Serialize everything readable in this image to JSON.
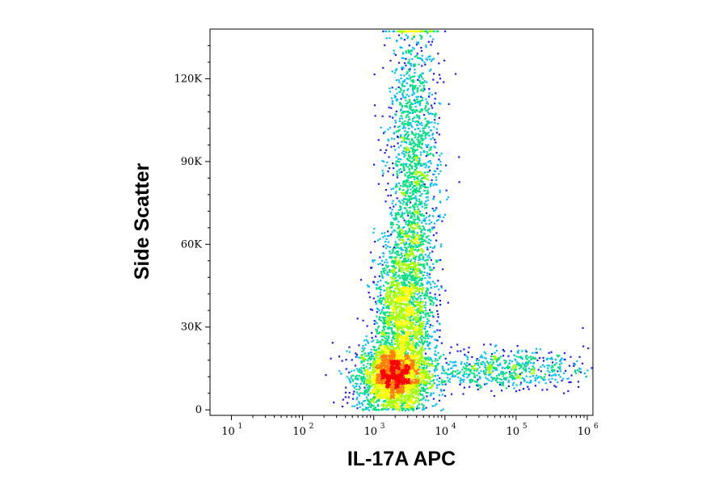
{
  "chart_data": {
    "type": "scatter",
    "xlabel": "IL-17A APC",
    "ylabel": "Side Scatter",
    "x_scale": "log",
    "xlim": [
      5,
      1200000
    ],
    "ylim": [
      -2000,
      138000
    ],
    "x_ticks": [
      {
        "value": 10,
        "base": "10",
        "exp": "1"
      },
      {
        "value": 100,
        "base": "10",
        "exp": "2"
      },
      {
        "value": 1000,
        "base": "10",
        "exp": "3"
      },
      {
        "value": 10000,
        "base": "10",
        "exp": "4"
      },
      {
        "value": 100000,
        "base": "10",
        "exp": "5"
      },
      {
        "value": 1000000,
        "base": "10",
        "exp": "6"
      }
    ],
    "y_ticks": [
      {
        "value": 0,
        "label": "0"
      },
      {
        "value": 30000,
        "label": "30K"
      },
      {
        "value": 60000,
        "label": "60K"
      },
      {
        "value": 90000,
        "label": "90K"
      },
      {
        "value": 120000,
        "label": "120K"
      }
    ],
    "grid": false,
    "legend": "none",
    "density_colormap": [
      "#1a1aff",
      "#00bfff",
      "#00e080",
      "#a0ff00",
      "#ffff00",
      "#ff8000",
      "#ff0000"
    ],
    "populations": [
      {
        "x_center": 1800,
        "y_center": 12000,
        "x_spread_log10": 0.25,
        "y_spread": 6000,
        "weight": 0.35
      },
      {
        "x_center": 2500,
        "y_center": 35000,
        "x_spread_log10": 0.2,
        "y_spread": 14000,
        "weight": 0.25
      },
      {
        "x_center": 3500,
        "y_center": 80000,
        "x_spread_log10": 0.18,
        "y_spread": 35000,
        "weight": 0.3
      },
      {
        "x_center": 60000,
        "y_center": 15000,
        "x_spread_log10": 0.6,
        "y_spread": 3500,
        "weight": 0.1
      }
    ]
  }
}
